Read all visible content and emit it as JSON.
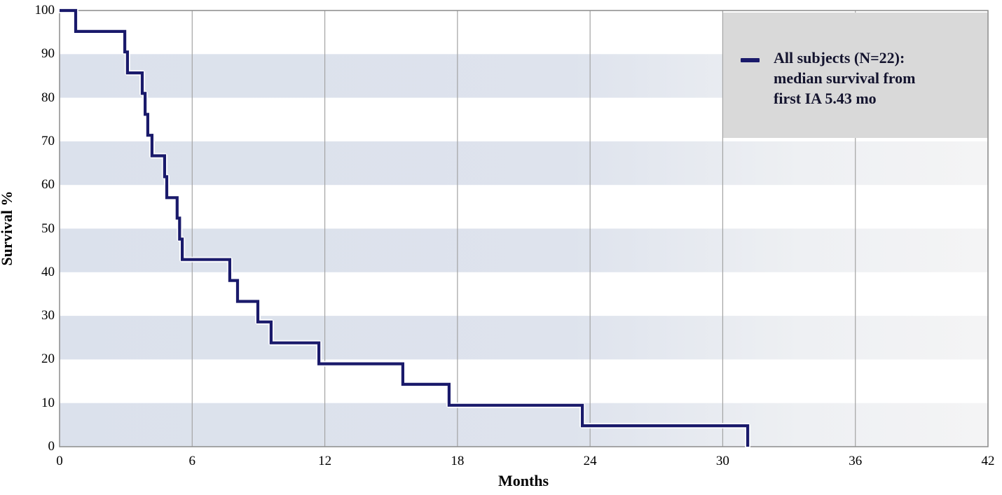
{
  "chart_data": {
    "type": "line",
    "subtype": "kaplan-meier-step-survival",
    "title": "",
    "xlabel": "Months",
    "ylabel": "Survival %",
    "xlim": [
      0,
      42
    ],
    "ylim": [
      0,
      100
    ],
    "x_ticks": [
      0,
      6,
      12,
      18,
      24,
      30,
      36,
      42
    ],
    "y_ticks": [
      100,
      90,
      80,
      70,
      60,
      50,
      40,
      30,
      20,
      10,
      0
    ],
    "grid": "vertical-gridlines-at-x-ticks",
    "shaded_bands_y": [
      [
        0,
        10
      ],
      [
        20,
        30
      ],
      [
        40,
        50
      ],
      [
        60,
        70
      ],
      [
        80,
        90
      ]
    ],
    "legend_position": "top-right",
    "series": [
      {
        "name": "All subjects (N=22): median survival from first IA 5.43 mo",
        "steps": [
          [
            0,
            100
          ],
          [
            0.73,
            95.2
          ],
          [
            2.95,
            90.5
          ],
          [
            3.07,
            85.7
          ],
          [
            3.74,
            81.0
          ],
          [
            3.87,
            76.2
          ],
          [
            3.99,
            71.4
          ],
          [
            4.18,
            66.7
          ],
          [
            4.75,
            61.9
          ],
          [
            4.85,
            57.1
          ],
          [
            5.32,
            52.4
          ],
          [
            5.43,
            47.6
          ],
          [
            5.55,
            42.9
          ],
          [
            7.7,
            38.1
          ],
          [
            8.05,
            33.3
          ],
          [
            8.97,
            28.6
          ],
          [
            9.57,
            23.8
          ],
          [
            11.73,
            19.0
          ],
          [
            15.53,
            14.3
          ],
          [
            17.62,
            9.5
          ],
          [
            23.65,
            4.8
          ],
          [
            31.13,
            0
          ]
        ]
      }
    ]
  },
  "legend": {
    "lines": [
      "All subjects (N=22):",
      "median survival from",
      "first IA 5.43 mo"
    ]
  },
  "colors": {
    "curve": "#1a1a6b",
    "curve_halo": "#ffffff",
    "band_left": "#dbe1ec",
    "band_mid": "#dee3ed",
    "band_right": "#f4f4f5",
    "gridline": "#a3a3a3",
    "frame": "#8c8c8c",
    "legend_bg": "#d9d9d9",
    "text": "#000000",
    "legend_text": "#14142e"
  }
}
